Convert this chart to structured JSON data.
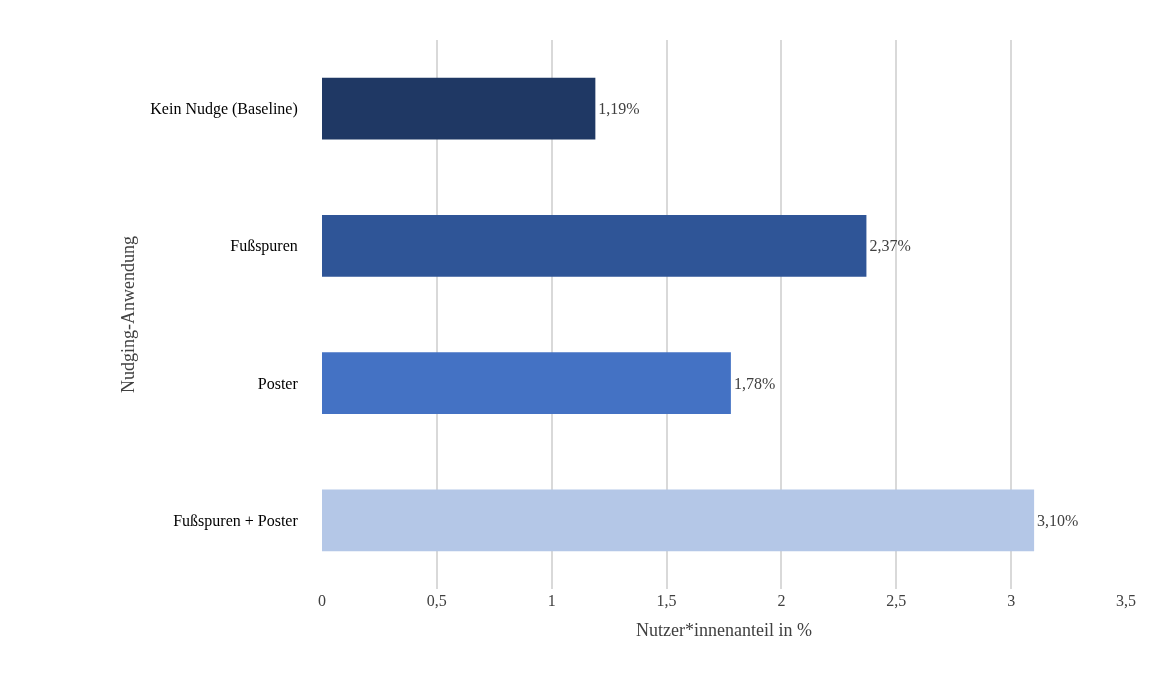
{
  "chart_data": {
    "type": "bar",
    "orientation": "horizontal",
    "xlabel": "Nutzer*innenanteil in %",
    "ylabel": "Nudging-Anwendung",
    "categories": [
      "Kein Nudge (Baseline)",
      "Fußspuren",
      "Poster",
      "Fußspuren + Poster"
    ],
    "values": [
      1.19,
      2.37,
      1.78,
      3.1
    ],
    "colors": [
      "#1f3864",
      "#2f5597",
      "#4472c4",
      "#b4c7e7"
    ],
    "value_labels": [
      "1,19%",
      "2,37%",
      "1,78%",
      "3,10%"
    ],
    "xlim": [
      0,
      3.5
    ],
    "xticks": [
      0,
      {
        "value": 0.5,
        "label": "0,5"
      },
      1,
      {
        "value": 1.5,
        "label": "1,5"
      },
      2,
      {
        "value": 2.5,
        "label": "2,5"
      },
      3,
      {
        "value": 3.5,
        "label": "3,5"
      }
    ],
    "grid": "x",
    "legend": false
  }
}
